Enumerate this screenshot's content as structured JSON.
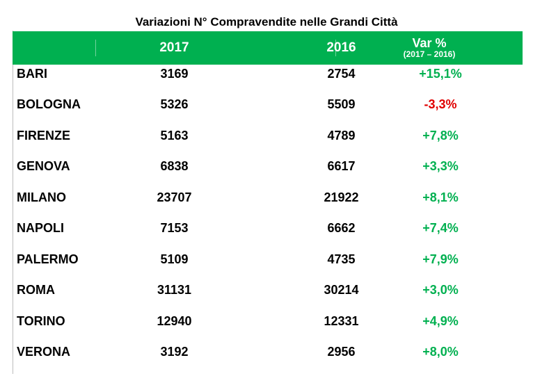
{
  "chart_data": {
    "type": "table",
    "title": "Variazioni N° Compravendite nelle Grandi Città",
    "columns": [
      {
        "label": ""
      },
      {
        "label": "2017"
      },
      {
        "label": "2016"
      },
      {
        "label": "Var %",
        "sublabel": "(2017 – 2016)"
      }
    ],
    "rows": [
      {
        "city": "BARI",
        "y2017": "3169",
        "y2016": "2754",
        "var": "+15,1%",
        "var_color": "#00b050"
      },
      {
        "city": "BOLOGNA",
        "y2017": "5326",
        "y2016": "5509",
        "var": "-3,3%",
        "var_color": "#e00000"
      },
      {
        "city": "FIRENZE",
        "y2017": "5163",
        "y2016": "4789",
        "var": "+7,8%",
        "var_color": "#00b050"
      },
      {
        "city": "GENOVA",
        "y2017": "6838",
        "y2016": "6617",
        "var": "+3,3%",
        "var_color": "#00b050"
      },
      {
        "city": "MILANO",
        "y2017": "23707",
        "y2016": "21922",
        "var": "+8,1%",
        "var_color": "#00b050"
      },
      {
        "city": "NAPOLI",
        "y2017": "7153",
        "y2016": "6662",
        "var": "+7,4%",
        "var_color": "#00b050"
      },
      {
        "city": "PALERMO",
        "y2017": "5109",
        "y2016": "4735",
        "var": "+7,9%",
        "var_color": "#00b050"
      },
      {
        "city": "ROMA",
        "y2017": "31131",
        "y2016": "30214",
        "var": "+3,0%",
        "var_color": "#00b050"
      },
      {
        "city": "TORINO",
        "y2017": "12940",
        "y2016": "12331",
        "var": "+4,9%",
        "var_color": "#00b050"
      },
      {
        "city": "VERONA",
        "y2017": "3192",
        "y2016": "2956",
        "var": "+8,0%",
        "var_color": "#00b050"
      }
    ]
  },
  "colors": {
    "header_bg": "#00b050",
    "positive": "#00b050",
    "negative": "#e00000"
  }
}
